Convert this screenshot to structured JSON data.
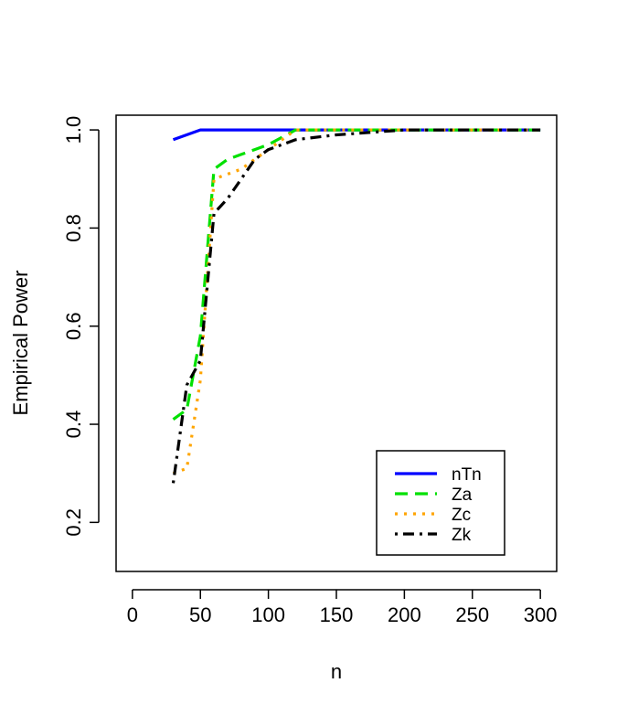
{
  "chart_data": {
    "type": "line",
    "title": "",
    "xlabel": "n",
    "ylabel": "Empirical Power",
    "xlim": [
      -12,
      312
    ],
    "ylim": [
      0.1,
      1.03
    ],
    "xticks": [
      0,
      50,
      100,
      150,
      200,
      250,
      300
    ],
    "yticks": [
      0.2,
      0.4,
      0.6,
      0.8,
      1.0
    ],
    "ytick_labels": [
      "0.2",
      "0.4",
      "0.6",
      "0.8",
      "1.0"
    ],
    "grid": false,
    "legend_position": "bottom-right",
    "series": [
      {
        "name": "nTn",
        "color": "#0000ff",
        "dash": "solid",
        "x": [
          30,
          50,
          60,
          70,
          80,
          90,
          100,
          150,
          200,
          250,
          300
        ],
        "y": [
          0.98,
          1.0,
          1.0,
          1.0,
          1.0,
          1.0,
          1.0,
          1.0,
          1.0,
          1.0,
          1.0
        ]
      },
      {
        "name": "Za",
        "color": "#00e000",
        "dash": "dashed",
        "x": [
          30,
          40,
          50,
          60,
          70,
          80,
          90,
          100,
          120,
          150,
          200,
          250,
          300
        ],
        "y": [
          0.41,
          0.43,
          0.58,
          0.92,
          0.94,
          0.95,
          0.96,
          0.97,
          1.0,
          1.0,
          1.0,
          1.0,
          1.0
        ]
      },
      {
        "name": "Zc",
        "color": "#ffa500",
        "dash": "dotted",
        "x": [
          30,
          40,
          50,
          60,
          70,
          80,
          90,
          100,
          120,
          150,
          200,
          250,
          300
        ],
        "y": [
          0.3,
          0.31,
          0.49,
          0.9,
          0.91,
          0.92,
          0.94,
          0.96,
          1.0,
          1.0,
          1.0,
          1.0,
          1.0
        ]
      },
      {
        "name": "Zk",
        "color": "#000000",
        "dash": "dotdash",
        "x": [
          30,
          40,
          50,
          60,
          70,
          80,
          90,
          100,
          120,
          150,
          200,
          250,
          300
        ],
        "y": [
          0.28,
          0.48,
          0.53,
          0.83,
          0.86,
          0.9,
          0.94,
          0.96,
          0.98,
          0.99,
          1.0,
          1.0,
          1.0
        ]
      }
    ]
  }
}
